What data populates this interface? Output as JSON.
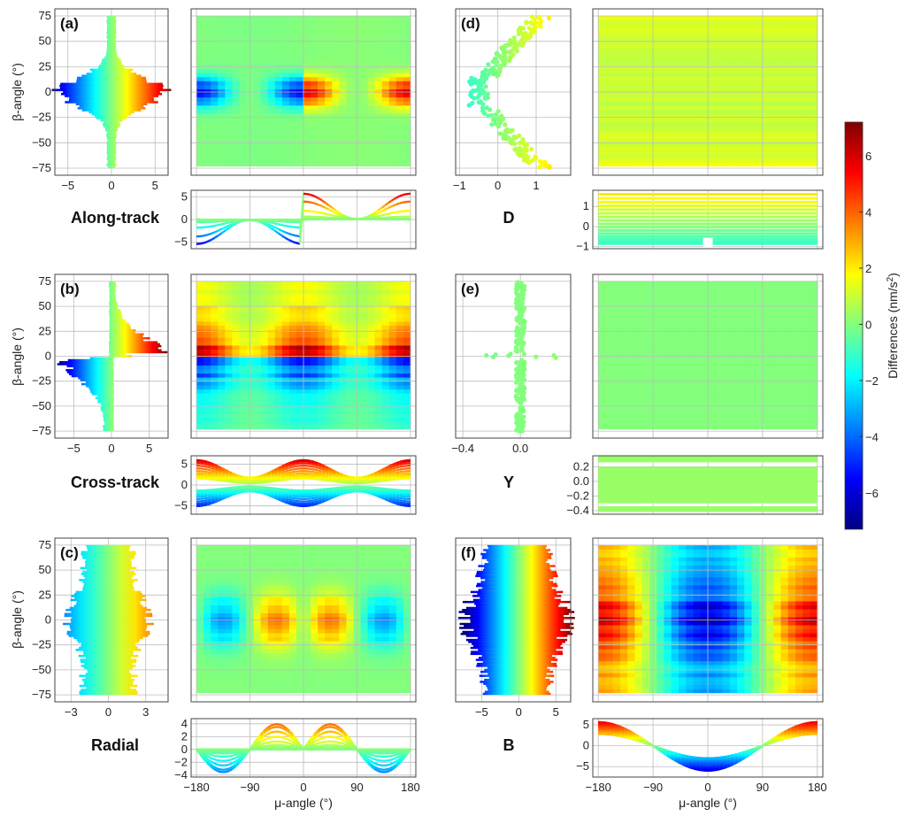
{
  "chart_data": {
    "type": "heatmap",
    "colormap": "jet",
    "colorbar": {
      "label": "Differences (nm/s²)",
      "label_main": "Differences (nm/s",
      "label_sup": "2",
      "label_end": ")",
      "range": [
        -7.3,
        7.2
      ],
      "ticks": [
        "6",
        "4",
        "2",
        "0",
        "−2",
        "−4",
        "−6"
      ],
      "tick_values": [
        6,
        4,
        2,
        0,
        -2,
        -4,
        -6
      ]
    },
    "ylabel": "β-angle (°)",
    "xlabel": "μ-angle (°)",
    "beta_range": [
      -75,
      75
    ],
    "beta_ticks": [
      "75",
      "50",
      "25",
      "0",
      "−25",
      "−50",
      "−75"
    ],
    "beta_tick_values": [
      75,
      50,
      25,
      0,
      -25,
      -50,
      -75
    ],
    "mu_range": [
      -180,
      180
    ],
    "mu_ticks": [
      "−180",
      "−90",
      "0",
      "90",
      "180"
    ],
    "mu_tick_values": [
      -180,
      -90,
      0,
      90,
      180
    ],
    "grid": true,
    "panels": [
      {
        "id": "a",
        "label": "(a)",
        "component": "Along-track",
        "scatter_ticks": [
          "−5",
          "0",
          "5"
        ],
        "scatter_tick_values": [
          -5,
          0,
          5
        ],
        "line_ticks": [
          "5",
          "0",
          "−5"
        ],
        "line_tick_values": [
          5,
          0,
          -5
        ],
        "line_extremes_at_mu": {
          "-180": -5.5,
          "-90": 0.5,
          "0-": -5.5,
          "0+": 5.5,
          "90": -0.5,
          "180": 5.5
        }
      },
      {
        "id": "d",
        "label": "(d)",
        "component": "D",
        "scatter_ticks": [
          "−1",
          "0",
          "1"
        ],
        "scatter_tick_values": [
          -1,
          0,
          1
        ],
        "line_ticks": [
          "1",
          "0",
          "−1"
        ],
        "line_tick_values": [
          1,
          0,
          -1
        ],
        "value_range": [
          -0.9,
          1.6
        ]
      },
      {
        "id": "b",
        "label": "(b)",
        "component": "Cross-track",
        "scatter_ticks": [
          "−5",
          "0",
          "5"
        ],
        "scatter_tick_values": [
          -5,
          0,
          5
        ],
        "line_ticks": [
          "5",
          "0",
          "−5"
        ],
        "line_tick_values": [
          5,
          0,
          -5
        ],
        "line_extremes_at_mu": {
          "-180": [
            -5,
            6
          ],
          "-90": [
            -2,
            2
          ],
          "0": [
            -6,
            7
          ],
          "90": [
            -2,
            2
          ],
          "180": [
            -5,
            6
          ]
        }
      },
      {
        "id": "e",
        "label": "(e)",
        "component": "Y",
        "scatter_ticks": [
          "−0.4",
          "0.0"
        ],
        "scatter_tick_values": [
          -0.4,
          0.0
        ],
        "line_ticks": [
          "0.2",
          "0.0",
          "−0.2",
          "−0.4"
        ],
        "line_tick_values": [
          0.2,
          0.0,
          -0.2,
          -0.4
        ],
        "value_range": [
          -0.4,
          0.3
        ]
      },
      {
        "id": "c",
        "label": "(c)",
        "component": "Radial",
        "scatter_ticks": [
          "−3",
          "0",
          "3"
        ],
        "scatter_tick_values": [
          -3,
          0,
          3
        ],
        "line_ticks": [
          "4",
          "2",
          "0",
          "−2",
          "−4"
        ],
        "line_tick_values": [
          4,
          2,
          0,
          -2,
          -4
        ],
        "line_extremes_at_mu": {
          "-135": -3.8,
          "-45": 4.2,
          "45": 4.2,
          "135": -3.8
        }
      },
      {
        "id": "f",
        "label": "(f)",
        "component": "B",
        "scatter_ticks": [
          "−5",
          "0",
          "5"
        ],
        "scatter_tick_values": [
          -5,
          0,
          5
        ],
        "line_ticks": [
          "5",
          "0",
          "−5"
        ],
        "line_tick_values": [
          5,
          0,
          -5
        ],
        "line_extremes_at_mu": {
          "-180": 6,
          "-90": 0,
          "0": -6.5,
          "90": 0,
          "180": 6
        }
      }
    ]
  }
}
